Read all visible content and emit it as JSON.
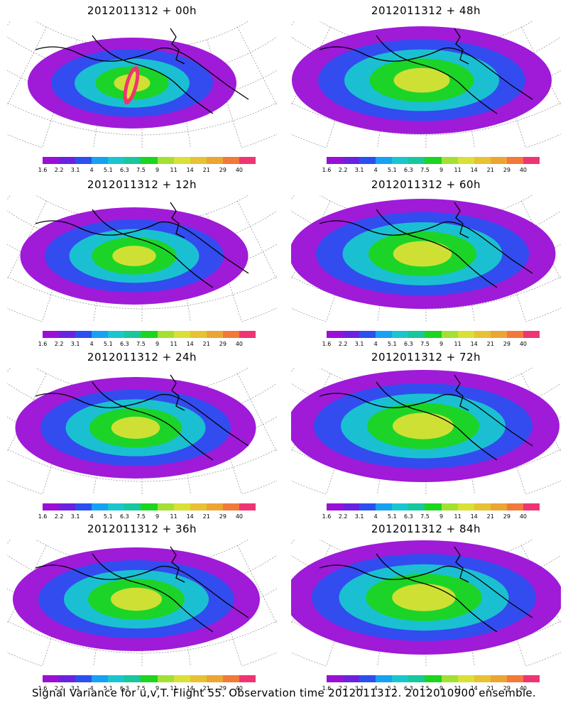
{
  "colorbar": {
    "colors": [
      "#9a0fd6",
      "#6a22e0",
      "#2c4ff0",
      "#17a1f2",
      "#19c6cf",
      "#18c79b",
      "#1cd51e",
      "#a4e033",
      "#d9e036",
      "#e7c232",
      "#eca532",
      "#f2793a",
      "#ee3572"
    ],
    "ticks": [
      "1.6",
      "2.2",
      "3.1",
      "4",
      "5.1",
      "6.3",
      "7.5",
      "9",
      "11",
      "14",
      "21",
      "29",
      "40"
    ]
  },
  "panels": [
    {
      "title": "2012011312 + 00h",
      "intensity": 0.3
    },
    {
      "title": "2012011312 + 48h",
      "intensity": 0.7
    },
    {
      "title": "2012011312 + 12h",
      "intensity": 0.45
    },
    {
      "title": "2012011312 + 60h",
      "intensity": 0.75
    },
    {
      "title": "2012011312 + 24h",
      "intensity": 0.55
    },
    {
      "title": "2012011312 + 72h",
      "intensity": 0.8
    },
    {
      "title": "2012011312 + 36h",
      "intensity": 0.6
    },
    {
      "title": "2012011312 + 84h",
      "intensity": 0.85
    }
  ],
  "footer": "Signal Variance for u,v,T. Flight 55. Observation time 2012011312. 2012010900 ensemble."
}
